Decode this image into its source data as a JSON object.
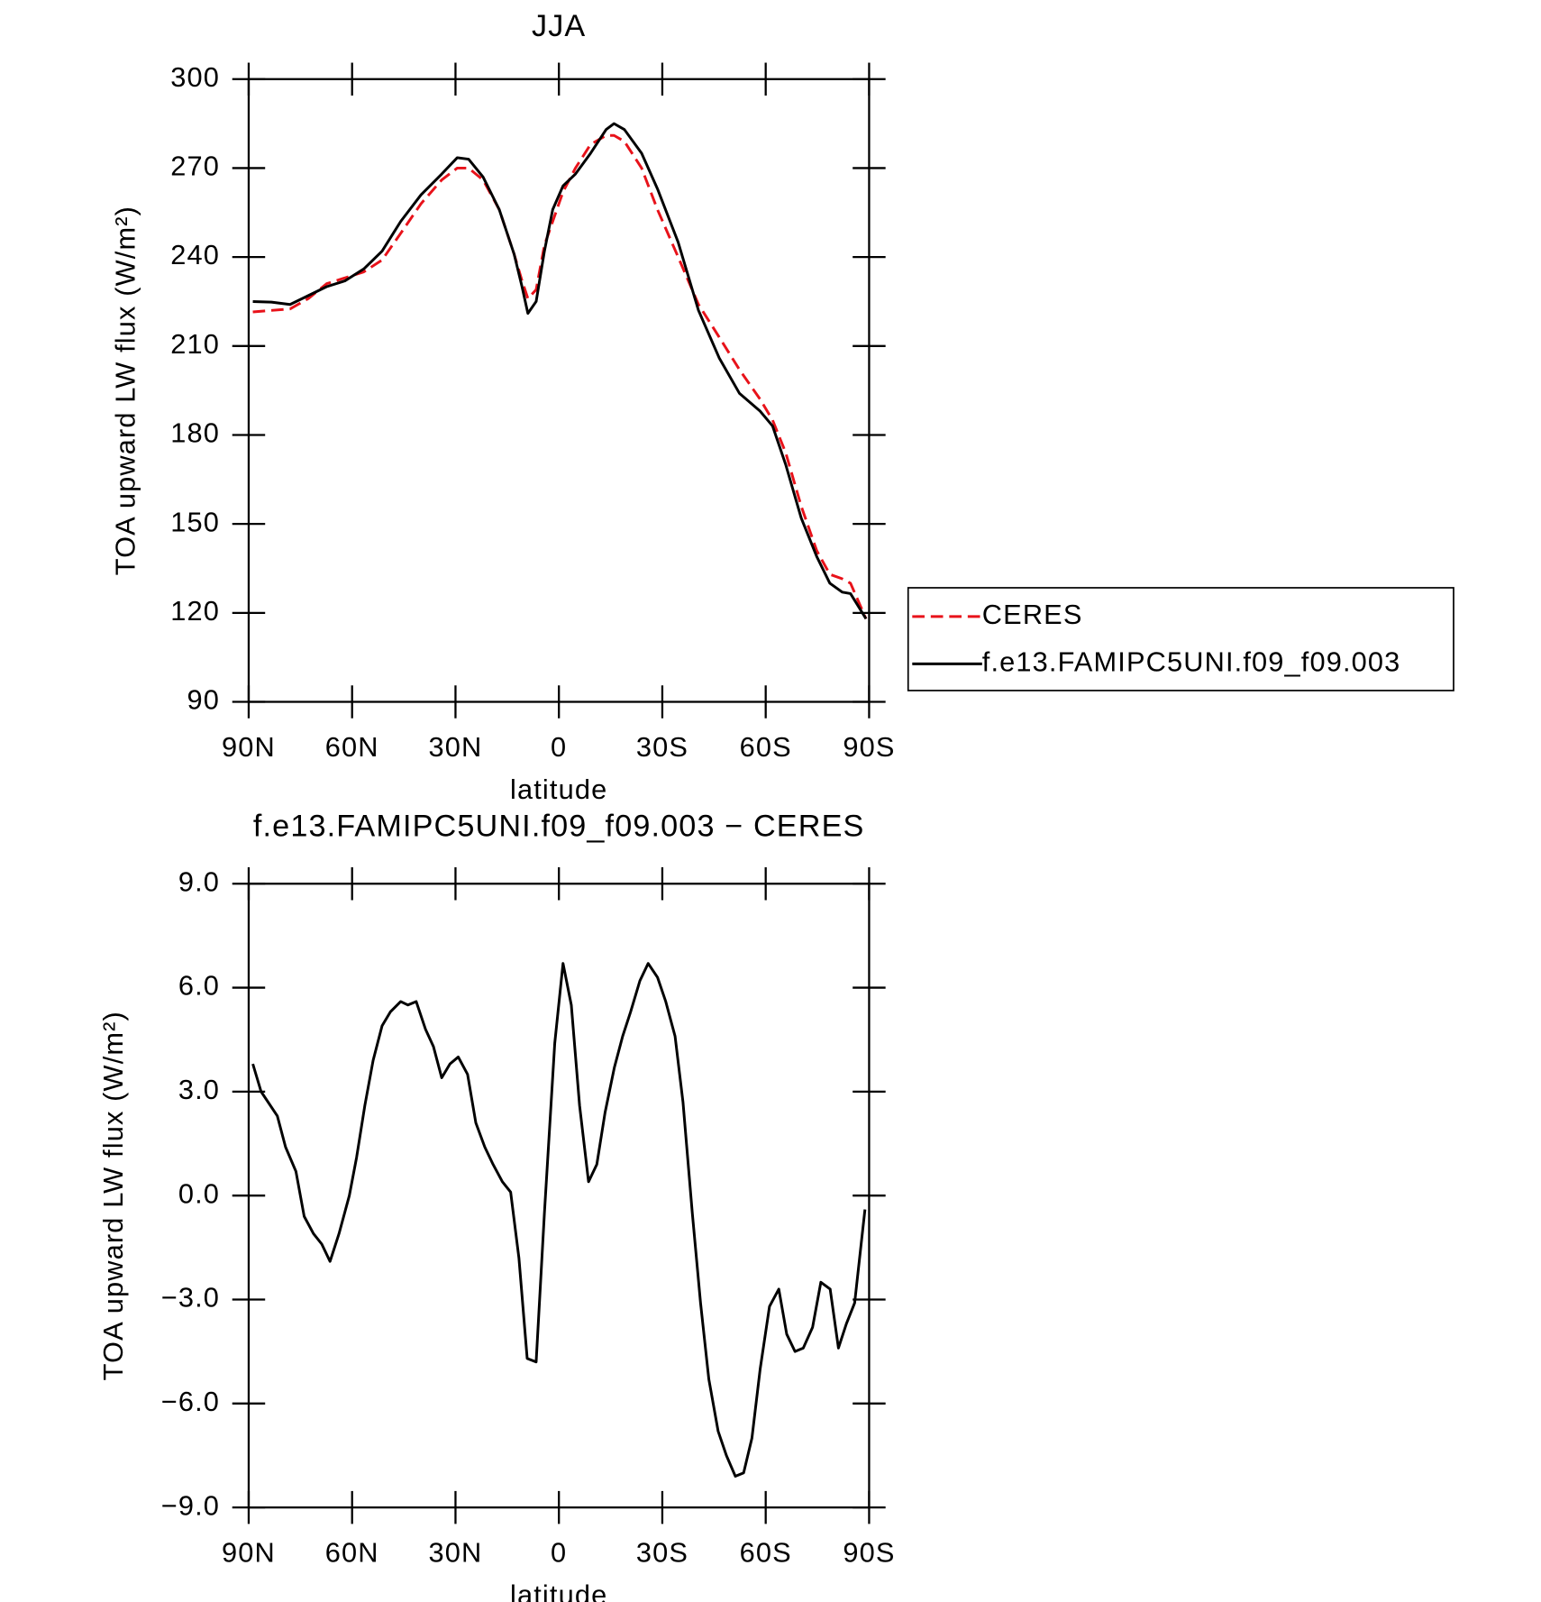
{
  "chart_data": [
    {
      "type": "line",
      "title": "JJA",
      "xlabel": "latitude",
      "ylabel": "TOA upward LW flux (W/m²)",
      "xlim": [
        90,
        -90
      ],
      "xticks": [
        {
          "value": 90,
          "label": "90N"
        },
        {
          "value": 60,
          "label": "60N"
        },
        {
          "value": 30,
          "label": "30N"
        },
        0,
        {
          "value": -30,
          "label": "30S"
        },
        {
          "value": -60,
          "label": "60S"
        },
        {
          "value": -90,
          "label": "90S"
        }
      ],
      "ylim": [
        90,
        300
      ],
      "yticks": [
        90,
        120,
        150,
        180,
        210,
        240,
        270,
        300
      ],
      "legend": "right",
      "x": [
        88.8,
        83.4,
        78,
        72.7,
        67.4,
        62,
        56.6,
        51.3,
        45.9,
        40,
        34,
        29.5,
        26.2,
        22,
        17.3,
        13,
        10.7,
        9,
        6.6,
        4.2,
        1.8,
        -1.2,
        -4.8,
        -9.2,
        -13.7,
        -16,
        -19,
        -24,
        -28.6,
        -34.6,
        -40.5,
        -46.5,
        -52.4,
        -58.4,
        -62,
        -65.8,
        -70.3,
        -74.8,
        -78.6,
        -82.2,
        -84.6,
        -89.1
      ],
      "series": [
        {
          "name": "CERES",
          "color": "#e8121a",
          "style": "dashed",
          "values": [
            221.5,
            222,
            222.5,
            226,
            231,
            233,
            235,
            239,
            248,
            258,
            266,
            270,
            270,
            266,
            256,
            241,
            232,
            226,
            229,
            244,
            252,
            262,
            270,
            278,
            281,
            281,
            279,
            270,
            256,
            240,
            224,
            213,
            202,
            192,
            185,
            174,
            156,
            141,
            133,
            131.5,
            130,
            118
          ]
        },
        {
          "name": "f.e13.FAMIPC5UNI.f09_f09.003",
          "color": "#000000",
          "style": "solid",
          "values": [
            225,
            224.8,
            224,
            227,
            230,
            232,
            236,
            242,
            252,
            261,
            268,
            273.5,
            273,
            267,
            256,
            241,
            230,
            221,
            225,
            242,
            256,
            264,
            268,
            275,
            283,
            285,
            283,
            275,
            263,
            245,
            222,
            206,
            194,
            188,
            183,
            170,
            152,
            139,
            130,
            127,
            126.5,
            118
          ]
        }
      ]
    },
    {
      "type": "line",
      "title": "f.e13.FAMIPC5UNI.f09_f09.003 − CERES",
      "xlabel": "latitude",
      "ylabel": "TOA upward LW flux (W/m²)",
      "xlim": [
        90,
        -90
      ],
      "xticks": [
        {
          "value": 90,
          "label": "90N"
        },
        {
          "value": 60,
          "label": "60N"
        },
        {
          "value": 30,
          "label": "30N"
        },
        0,
        {
          "value": -30,
          "label": "30S"
        },
        {
          "value": -60,
          "label": "60S"
        },
        {
          "value": -90,
          "label": "90S"
        }
      ],
      "ylim": [
        -9,
        9
      ],
      "yticks": [
        {
          "value": -9,
          "label": "−9.0"
        },
        {
          "value": -6,
          "label": "−6.0"
        },
        {
          "value": -3,
          "label": "−3.0"
        },
        {
          "value": 0,
          "label": "0.0"
        },
        {
          "value": 3,
          "label": "3.0"
        },
        {
          "value": 6,
          "label": "6.0"
        },
        {
          "value": 9,
          "label": "9.0"
        }
      ],
      "x": [
        88.8,
        86.4,
        81.7,
        79.3,
        76.3,
        73.9,
        71.2,
        68.8,
        66.4,
        63.8,
        60.8,
        58.7,
        56.3,
        53.9,
        51.3,
        48.9,
        45.9,
        43.8,
        41.4,
        38.7,
        36.4,
        34,
        31.6,
        29.2,
        26.5,
        24.1,
        21.5,
        19.1,
        16.4,
        14,
        11.6,
        9.2,
        6.6,
        4.2,
        1.2,
        -1.2,
        -3.6,
        -6,
        -8.6,
        -11,
        -13.4,
        -16.1,
        -18.5,
        -20.8,
        -23.5,
        -25.9,
        -28.6,
        -31,
        -33.7,
        -36,
        -38.7,
        -41.1,
        -43.5,
        -46.2,
        -48.6,
        -51.2,
        -53.6,
        -56,
        -58.4,
        -61.1,
        -63.8,
        -66.1,
        -68.5,
        -70.9,
        -73.6,
        -76,
        -78.7,
        -81.1,
        -83.4,
        -85.8,
        -88.8
      ],
      "color": "#000000",
      "values": [
        3.8,
        3.0,
        2.3,
        1.4,
        0.7,
        -0.6,
        -1.1,
        -1.4,
        -1.9,
        -1.1,
        0,
        1.1,
        2.6,
        3.9,
        4.9,
        5.3,
        5.6,
        5.5,
        5.6,
        4.8,
        4.3,
        3.4,
        3.8,
        4.0,
        3.5,
        2.1,
        1.4,
        0.9,
        0.4,
        0.1,
        -1.8,
        -4.7,
        -4.8,
        -0.5,
        4.4,
        6.7,
        5.5,
        2.6,
        0.4,
        0.9,
        2.4,
        3.7,
        4.6,
        5.3,
        6.2,
        6.7,
        6.3,
        5.6,
        4.6,
        2.7,
        -0.5,
        -3.1,
        -5.3,
        -6.8,
        -7.5,
        -8.1,
        -8.0,
        -7.0,
        -5.0,
        -3.2,
        -2.7,
        -4.0,
        -4.5,
        -4.4,
        -3.8,
        -2.5,
        -2.7,
        -4.4,
        -3.7,
        -3.1,
        -0.4
      ]
    }
  ]
}
